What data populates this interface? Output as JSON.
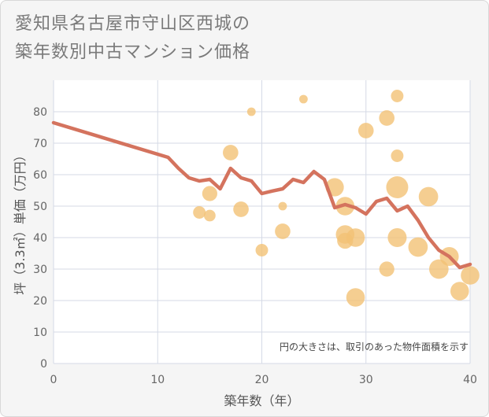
{
  "title_lines": [
    "愛知県名古屋市守山区西城の",
    "築年数別中古マンション価格"
  ],
  "chart_data": {
    "type": "scatter",
    "xlabel": "築年数（年）",
    "ylabel": "坪（3.3㎡）単価（万円）",
    "xlim": [
      0,
      40
    ],
    "ylim": [
      0,
      90
    ],
    "xticks": [
      0,
      10,
      20,
      30,
      40
    ],
    "yticks": [
      0,
      10,
      20,
      30,
      40,
      50,
      60,
      70,
      80
    ],
    "grid": true,
    "annotation": "円の大きさは、取引のあった物件面積を示す",
    "colors": {
      "bubble": "#f2c275",
      "line": "#d4735e",
      "plot_bg": "#ffffff",
      "grid": "#d5dae6"
    },
    "points": [
      {
        "x": 14,
        "y": 48,
        "s": 0.45
      },
      {
        "x": 15,
        "y": 47,
        "s": 0.4
      },
      {
        "x": 15,
        "y": 54,
        "s": 0.6
      },
      {
        "x": 17,
        "y": 67,
        "s": 0.62
      },
      {
        "x": 18,
        "y": 49,
        "s": 0.62
      },
      {
        "x": 19,
        "y": 80,
        "s": 0.22
      },
      {
        "x": 20,
        "y": 36,
        "s": 0.45
      },
      {
        "x": 22,
        "y": 50,
        "s": 0.22
      },
      {
        "x": 22,
        "y": 42,
        "s": 0.62
      },
      {
        "x": 24,
        "y": 84,
        "s": 0.22
      },
      {
        "x": 27,
        "y": 56,
        "s": 0.78
      },
      {
        "x": 28,
        "y": 50,
        "s": 0.8
      },
      {
        "x": 28,
        "y": 41,
        "s": 0.8
      },
      {
        "x": 28,
        "y": 39,
        "s": 0.65
      },
      {
        "x": 29,
        "y": 40,
        "s": 0.8
      },
      {
        "x": 29,
        "y": 21,
        "s": 0.8
      },
      {
        "x": 30,
        "y": 74,
        "s": 0.62
      },
      {
        "x": 32,
        "y": 78,
        "s": 0.62
      },
      {
        "x": 32,
        "y": 30,
        "s": 0.6
      },
      {
        "x": 33,
        "y": 85,
        "s": 0.45
      },
      {
        "x": 33,
        "y": 66,
        "s": 0.45
      },
      {
        "x": 33,
        "y": 56,
        "s": 1.0
      },
      {
        "x": 33,
        "y": 40,
        "s": 0.82
      },
      {
        "x": 35,
        "y": 37,
        "s": 0.85
      },
      {
        "x": 36,
        "y": 53,
        "s": 0.85
      },
      {
        "x": 37,
        "y": 30,
        "s": 0.85
      },
      {
        "x": 38,
        "y": 34,
        "s": 0.82
      },
      {
        "x": 39,
        "y": 23,
        "s": 0.8
      },
      {
        "x": 40,
        "y": 28,
        "s": 0.8
      }
    ],
    "trend": [
      {
        "x": 0,
        "y": 76.5
      },
      {
        "x": 11,
        "y": 65.5
      },
      {
        "x": 12,
        "y": 62
      },
      {
        "x": 13,
        "y": 59
      },
      {
        "x": 14,
        "y": 58
      },
      {
        "x": 15,
        "y": 58.5
      },
      {
        "x": 16,
        "y": 55.5
      },
      {
        "x": 17,
        "y": 62
      },
      {
        "x": 18,
        "y": 59
      },
      {
        "x": 19,
        "y": 58
      },
      {
        "x": 20,
        "y": 54
      },
      {
        "x": 21,
        "y": 54.8
      },
      {
        "x": 22,
        "y": 55.5
      },
      {
        "x": 23,
        "y": 58.5
      },
      {
        "x": 24,
        "y": 57.5
      },
      {
        "x": 25,
        "y": 61
      },
      {
        "x": 26,
        "y": 58.5
      },
      {
        "x": 27,
        "y": 49.5
      },
      {
        "x": 28,
        "y": 50.5
      },
      {
        "x": 29,
        "y": 49.5
      },
      {
        "x": 30,
        "y": 47.5
      },
      {
        "x": 31,
        "y": 51.5
      },
      {
        "x": 32,
        "y": 52.5
      },
      {
        "x": 33,
        "y": 48.5
      },
      {
        "x": 34,
        "y": 50
      },
      {
        "x": 35,
        "y": 45.5
      },
      {
        "x": 36,
        "y": 40
      },
      {
        "x": 37,
        "y": 36
      },
      {
        "x": 38,
        "y": 34
      },
      {
        "x": 39,
        "y": 30.5
      },
      {
        "x": 40,
        "y": 31.5
      }
    ]
  }
}
